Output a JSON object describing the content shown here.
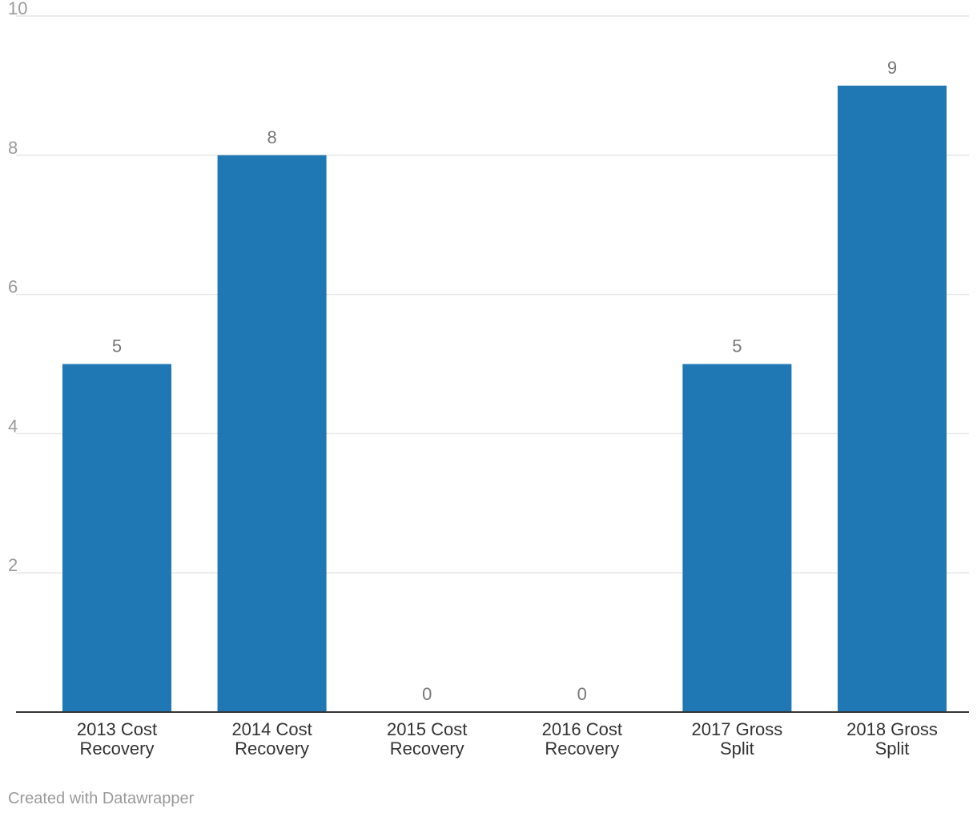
{
  "chart_data": {
    "type": "bar",
    "categories": [
      "2013 Cost Recovery",
      "2014 Cost Recovery",
      "2015 Cost Recovery",
      "2016 Cost Recovery",
      "2017 Gross Split",
      "2018 Gross Split"
    ],
    "category_lines": [
      [
        "2013 Cost",
        "Recovery"
      ],
      [
        "2014 Cost",
        "Recovery"
      ],
      [
        "2015 Cost",
        "Recovery"
      ],
      [
        "2016 Cost",
        "Recovery"
      ],
      [
        "2017 Gross",
        "Split"
      ],
      [
        "2018 Gross",
        "Split"
      ]
    ],
    "values": [
      5,
      8,
      0,
      0,
      5,
      9
    ],
    "title": "",
    "xlabel": "",
    "ylabel": "",
    "ylim": [
      0,
      10
    ],
    "yticks": [
      2,
      4,
      6,
      8,
      10
    ],
    "grid": true,
    "bar_color": "#1f77b4",
    "data_labels": true
  },
  "footer": {
    "credit": "Created with Datawrapper"
  }
}
